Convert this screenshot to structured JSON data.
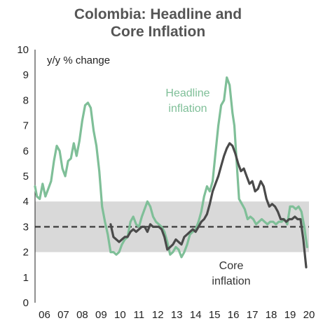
{
  "chart_data": {
    "type": "line",
    "title_lines": [
      "Colombia: Headline and",
      "Core Inflation"
    ],
    "ylabel": "y/y % change",
    "xlabel": "",
    "ylim": [
      0,
      10
    ],
    "yticks": [
      0,
      1,
      2,
      3,
      4,
      5,
      6,
      7,
      8,
      9,
      10
    ],
    "xlim": [
      2006,
      2020.5
    ],
    "xtick_labels": [
      "06",
      "07",
      "08",
      "09",
      "10",
      "11",
      "12",
      "13",
      "14",
      "15",
      "16",
      "17",
      "18",
      "19",
      "20"
    ],
    "target_band": [
      2,
      4
    ],
    "target_line": 3,
    "grid": false,
    "legend": "none",
    "annotations": {
      "headline": [
        "Headline",
        "inflation"
      ],
      "core": [
        "Core",
        "inflation"
      ]
    },
    "colors": {
      "headline": "#7fbf98",
      "core": "#4a4a4a",
      "band": "#d9d9d9",
      "target_line": "#4a4a4a",
      "title": "#555555"
    },
    "series": [
      {
        "key": "headline",
        "x": [
          2006.0,
          2006.1,
          2006.25,
          2006.4,
          2006.55,
          2006.7,
          2006.85,
          2007.0,
          2007.15,
          2007.3,
          2007.45,
          2007.6,
          2007.75,
          2007.9,
          2008.05,
          2008.2,
          2008.35,
          2008.5,
          2008.65,
          2008.8,
          2008.95,
          2009.1,
          2009.25,
          2009.4,
          2009.55,
          2009.7,
          2009.85,
          2010.0,
          2010.15,
          2010.3,
          2010.45,
          2010.6,
          2010.75,
          2010.9,
          2011.05,
          2011.2,
          2011.35,
          2011.5,
          2011.65,
          2011.8,
          2011.95,
          2012.1,
          2012.25,
          2012.4,
          2012.55,
          2012.7,
          2012.85,
          2013.0,
          2013.15,
          2013.3,
          2013.45,
          2013.6,
          2013.75,
          2013.9,
          2014.05,
          2014.2,
          2014.35,
          2014.5,
          2014.65,
          2014.8,
          2014.95,
          2015.1,
          2015.25,
          2015.4,
          2015.55,
          2015.7,
          2015.85,
          2016.0,
          2016.15,
          2016.3,
          2016.45,
          2016.55,
          2016.65,
          2016.8,
          2016.95,
          2017.1,
          2017.25,
          2017.4,
          2017.55,
          2017.7,
          2017.85,
          2018.0,
          2018.15,
          2018.3,
          2018.45,
          2018.6,
          2018.75,
          2018.9,
          2019.05,
          2019.2,
          2019.35,
          2019.5,
          2019.65,
          2019.8,
          2019.95,
          2020.1,
          2020.25,
          2020.4
        ],
        "values": [
          4.6,
          4.2,
          4.1,
          4.7,
          4.2,
          4.5,
          4.8,
          5.6,
          6.2,
          6.0,
          5.3,
          5.0,
          5.6,
          5.7,
          6.3,
          5.8,
          6.4,
          7.2,
          7.8,
          7.9,
          7.7,
          6.8,
          6.2,
          5.2,
          3.8,
          3.2,
          2.7,
          2.0,
          2.0,
          1.9,
          2.0,
          2.3,
          2.5,
          2.6,
          3.2,
          3.4,
          3.1,
          3.0,
          3.4,
          3.7,
          4.0,
          3.8,
          3.4,
          3.2,
          3.1,
          3.0,
          2.8,
          2.4,
          1.9,
          2.0,
          2.2,
          2.1,
          1.8,
          2.0,
          2.3,
          2.7,
          2.8,
          2.9,
          3.2,
          3.6,
          4.2,
          4.6,
          4.4,
          4.8,
          5.9,
          7.0,
          7.8,
          8.0,
          8.9,
          8.6,
          7.5,
          7.0,
          5.8,
          4.1,
          3.9,
          3.7,
          3.3,
          3.4,
          3.3,
          3.1,
          3.2,
          3.3,
          3.2,
          3.1,
          3.2,
          3.2,
          3.1,
          3.2,
          3.2,
          3.3,
          3.1,
          3.8,
          3.8,
          3.7,
          3.8,
          3.6,
          3.0,
          2.2
        ]
      },
      {
        "key": "core",
        "x": [
          2010.0,
          2010.15,
          2010.3,
          2010.45,
          2010.6,
          2010.75,
          2010.9,
          2011.05,
          2011.2,
          2011.35,
          2011.5,
          2011.65,
          2011.8,
          2011.95,
          2012.1,
          2012.25,
          2012.4,
          2012.55,
          2012.7,
          2012.85,
          2013.0,
          2013.15,
          2013.3,
          2013.45,
          2013.6,
          2013.75,
          2013.9,
          2014.05,
          2014.2,
          2014.35,
          2014.5,
          2014.65,
          2014.8,
          2014.95,
          2015.1,
          2015.25,
          2015.4,
          2015.55,
          2015.7,
          2015.85,
          2016.0,
          2016.15,
          2016.3,
          2016.45,
          2016.6,
          2016.75,
          2016.9,
          2017.05,
          2017.2,
          2017.35,
          2017.5,
          2017.65,
          2017.8,
          2017.95,
          2018.1,
          2018.25,
          2018.4,
          2018.55,
          2018.7,
          2018.85,
          2019.0,
          2019.15,
          2019.3,
          2019.45,
          2019.6,
          2019.75,
          2019.9,
          2020.05,
          2020.2,
          2020.35
        ],
        "values": [
          3.1,
          2.6,
          2.5,
          2.4,
          2.5,
          2.6,
          2.6,
          2.8,
          2.9,
          2.8,
          2.9,
          3.0,
          3.0,
          2.8,
          3.1,
          3.0,
          3.0,
          3.0,
          2.9,
          2.6,
          2.1,
          2.2,
          2.3,
          2.5,
          2.4,
          2.3,
          2.6,
          2.7,
          2.8,
          2.9,
          2.8,
          3.0,
          3.2,
          3.3,
          3.5,
          3.9,
          4.4,
          4.7,
          5.0,
          5.4,
          5.8,
          6.1,
          6.3,
          6.2,
          5.9,
          5.5,
          5.2,
          5.3,
          5.0,
          4.7,
          4.8,
          4.4,
          4.5,
          4.8,
          4.6,
          4.1,
          3.8,
          3.9,
          3.8,
          3.6,
          3.3,
          3.3,
          3.2,
          3.3,
          3.3,
          3.4,
          3.3,
          3.3,
          2.5,
          1.4
        ]
      }
    ]
  }
}
